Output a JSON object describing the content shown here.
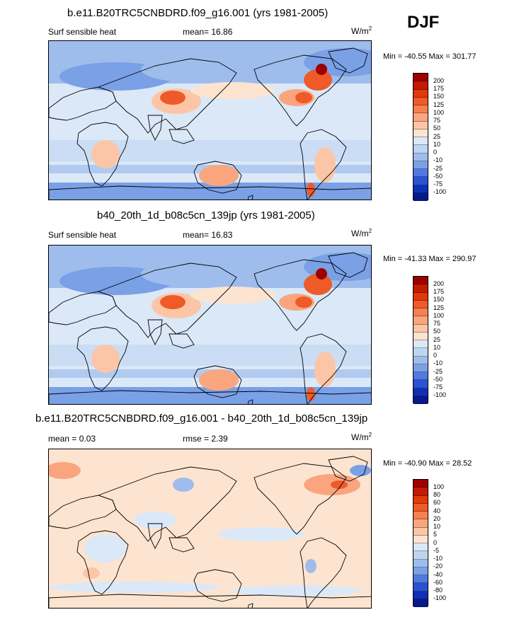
{
  "season": "DJF",
  "panels": [
    {
      "title": "b.e11.B20TRC5CNBDRD.f09_g16.001 (yrs 1981-2005)",
      "left_label": "Surf sensible heat",
      "center_label": "mean=  16.86",
      "units_base": "W/m",
      "units_exp": "2",
      "minmax": "Min = -40.55 Max = 301.77",
      "levels": [
        "200",
        "175",
        "150",
        "125",
        "100",
        "75",
        "50",
        "25",
        "10",
        "0",
        "-10",
        "-25",
        "-50",
        "-75",
        "-100"
      ],
      "colors": [
        "#9e0000",
        "#c41a00",
        "#e03a0a",
        "#ee5a28",
        "#f6804f",
        "#fba57e",
        "#fcc6a6",
        "#fde4d0",
        "#dbe8f8",
        "#bed5f2",
        "#9ebdec",
        "#7aa0e6",
        "#5279de",
        "#2a52d4",
        "#0f2fb5",
        "#061a8c"
      ],
      "field_type": "mean"
    },
    {
      "title": "b40_20th_1d_b08c5cn_139jp (yrs 1981-2005)",
      "left_label": "Surf sensible heat",
      "center_label": "mean=  16.83",
      "units_base": "W/m",
      "units_exp": "2",
      "minmax": "Min = -41.33 Max = 290.97",
      "levels": [
        "200",
        "175",
        "150",
        "125",
        "100",
        "75",
        "50",
        "25",
        "10",
        "0",
        "-10",
        "-25",
        "-50",
        "-75",
        "-100"
      ],
      "colors": [
        "#9e0000",
        "#c41a00",
        "#e03a0a",
        "#ee5a28",
        "#f6804f",
        "#fba57e",
        "#fcc6a6",
        "#fde4d0",
        "#dbe8f8",
        "#bed5f2",
        "#9ebdec",
        "#7aa0e6",
        "#5279de",
        "#2a52d4",
        "#0f2fb5",
        "#061a8c"
      ],
      "field_type": "mean"
    },
    {
      "title": "b.e11.B20TRC5CNBDRD.f09_g16.001 - b40_20th_1d_b08c5cn_139jp",
      "left_label": "mean =   0.03",
      "center_label": "rmse =   2.39",
      "units_base": "W/m",
      "units_exp": "2",
      "minmax": "Min = -40.90 Max =  28.52",
      "levels": [
        "100",
        "80",
        "60",
        "40",
        "20",
        "10",
        "5",
        "0",
        "-5",
        "-10",
        "-20",
        "-40",
        "-60",
        "-80",
        "-100"
      ],
      "colors": [
        "#9e0000",
        "#c41a00",
        "#e03a0a",
        "#ee5a28",
        "#f6804f",
        "#fba57e",
        "#fcc6a6",
        "#fde4d0",
        "#dbe8f8",
        "#bed5f2",
        "#9ebdec",
        "#7aa0e6",
        "#5279de",
        "#2a52d4",
        "#0f2fb5",
        "#061a8c"
      ],
      "field_type": "difference"
    }
  ]
}
